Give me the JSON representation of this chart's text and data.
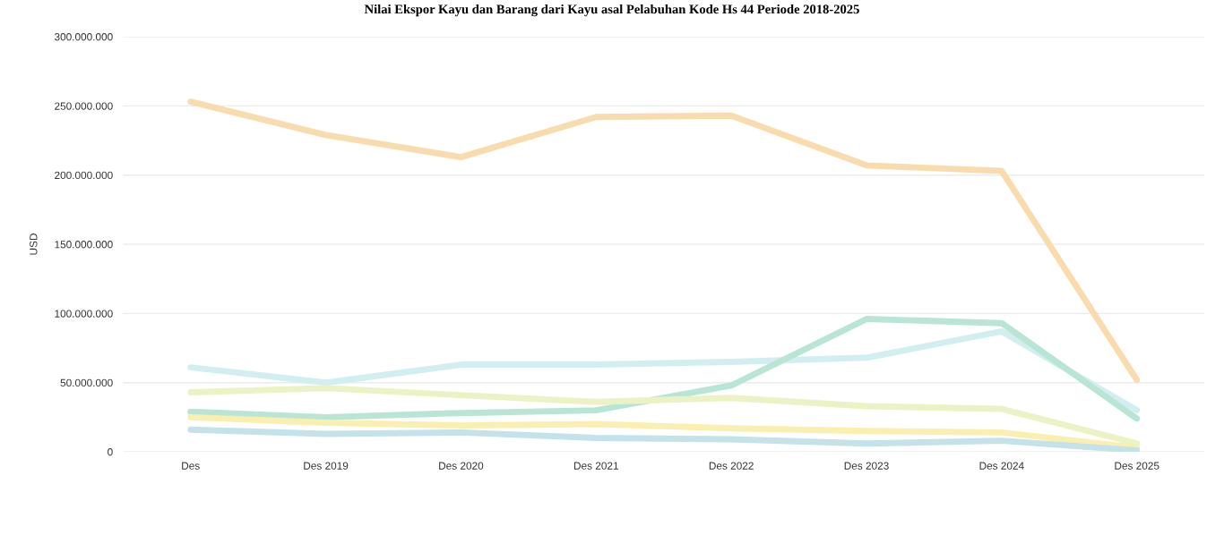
{
  "chart_data": {
    "type": "line",
    "title": "Nilai Ekspor Kayu dan Barang dari Kayu asal Pelabuhan Kode Hs 44 Periode 2018-2025",
    "ylabel": "USD",
    "categories": [
      "Des",
      "Des 2019",
      "Des 2020",
      "Des 2021",
      "Des 2022",
      "Des 2023",
      "Des 2024",
      "Des 2025"
    ],
    "series": [
      {
        "color": "#f9dcae",
        "values": [
          253000000,
          229000000,
          213000000,
          242000000,
          243000000,
          207000000,
          203000000,
          52000000
        ]
      },
      {
        "color": "#d3eef0",
        "values": [
          61000000,
          50000000,
          63000000,
          63000000,
          65000000,
          68000000,
          87000000,
          30000000
        ]
      },
      {
        "color": "#b9e6d4",
        "values": [
          29000000,
          25000000,
          28000000,
          30000000,
          48000000,
          96000000,
          93000000,
          24000000
        ]
      },
      {
        "color": "#ecf2c4",
        "values": [
          43000000,
          46000000,
          41000000,
          36000000,
          39000000,
          33000000,
          31000000,
          6000000
        ]
      },
      {
        "color": "#faefb0",
        "values": [
          25000000,
          21000000,
          19000000,
          20000000,
          17000000,
          15000000,
          14000000,
          3000000
        ]
      },
      {
        "color": "#c4e2ea",
        "values": [
          16000000,
          13000000,
          14000000,
          10000000,
          9000000,
          6000000,
          8000000,
          1000000
        ]
      }
    ],
    "ylim": [
      0,
      300000000
    ],
    "yticks": [
      0,
      {
        "value": 50000000,
        "label": "50.000.000"
      },
      {
        "value": 100000000,
        "label": "100.000.000"
      },
      {
        "value": 150000000,
        "label": "150.000.000"
      },
      {
        "value": 200000000,
        "label": "200.000.000"
      },
      {
        "value": 250000000,
        "label": "250.000.000"
      },
      {
        "value": 300000000,
        "label": "300.000.000"
      }
    ],
    "grid": "y",
    "marker": "none",
    "line_style": "solid"
  }
}
